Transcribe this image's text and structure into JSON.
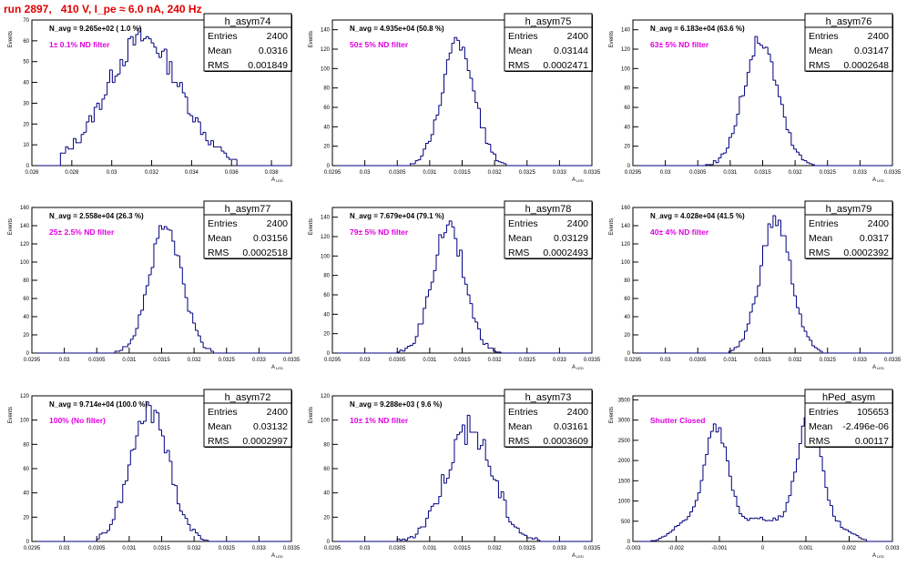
{
  "header": {
    "run_title": "run 2897,   410 V, I_pe ≈ 6.0 nA, 240 Hz"
  },
  "colors": {
    "histogram": "#00007f",
    "filter_label": "#e000e0",
    "run_title": "#e00000"
  },
  "stats_labels": {
    "entries": "Entries",
    "mean": "Mean",
    "rms": "RMS"
  },
  "axis_labels": {
    "y": "Events",
    "x_main": "A",
    "x_sub": "LED"
  },
  "chart_data": [
    {
      "type": "histogram",
      "name": "h_asym74",
      "navg": "N_avg = 9.265e+02 ( 1.0 %)",
      "filter": "1± 0.1% ND filter",
      "entries": "2400",
      "mean": "0.0316",
      "rms": "0.001849",
      "xlim": [
        0.026,
        0.039
      ],
      "ylim": [
        0,
        70
      ],
      "xticks": [
        0.026,
        0.028,
        0.03,
        0.032,
        0.034,
        0.036,
        0.038
      ],
      "xtick_labels": [
        "0.026",
        "0.028",
        "0.03",
        "0.032",
        "0.034",
        "0.036",
        "0.038"
      ],
      "yticks": [
        0,
        10,
        20,
        30,
        40,
        50,
        60,
        70
      ],
      "ytick_labels": [
        "0",
        "10",
        "20",
        "30",
        "40",
        "50",
        "60",
        "70"
      ],
      "dist": {
        "kind": "gauss",
        "mu": 0.0316,
        "sigma": 0.00185,
        "peak": 61,
        "lo": 0.0274,
        "hi": 0.0363,
        "noise": 6
      }
    },
    {
      "type": "histogram",
      "name": "h_asym75",
      "navg": "N_avg = 4.935e+04 (50.8 %)",
      "filter": "50± 5% ND filter",
      "entries": "2400",
      "mean": "0.03144",
      "rms": "0.0002471",
      "xlim": [
        0.0295,
        0.0335
      ],
      "ylim": [
        0,
        150
      ],
      "xticks": [
        0.0295,
        0.03,
        0.0305,
        0.031,
        0.0315,
        0.032,
        0.0325,
        0.033,
        0.0335
      ],
      "xtick_labels": [
        "0.0295",
        "0.03",
        "0.0305",
        "0.031",
        "0.0315",
        "0.032",
        "0.0325",
        "0.033",
        "0.0335"
      ],
      "yticks": [
        0,
        20,
        40,
        60,
        80,
        100,
        120,
        140
      ],
      "ytick_labels": [
        "0",
        "20",
        "40",
        "60",
        "80",
        "100",
        "120",
        "140"
      ],
      "dist": {
        "kind": "gauss",
        "mu": 0.03144,
        "sigma": 0.000247,
        "peak": 128,
        "lo": 0.0307,
        "hi": 0.0322,
        "noise": 10
      }
    },
    {
      "type": "histogram",
      "name": "h_asym76",
      "navg": "N_avg = 6.183e+04 (63.6 %)",
      "filter": "63± 5% ND filter",
      "entries": "2400",
      "mean": "0.03147",
      "rms": "0.0002648",
      "xlim": [
        0.0295,
        0.0335
      ],
      "ylim": [
        0,
        150
      ],
      "xticks": [
        0.0295,
        0.03,
        0.0305,
        0.031,
        0.0315,
        0.032,
        0.0325,
        0.033,
        0.0335
      ],
      "xtick_labels": [
        "0.0295",
        "0.03",
        "0.0305",
        "0.031",
        "0.0315",
        "0.032",
        "0.0325",
        "0.033",
        "0.0335"
      ],
      "yticks": [
        0,
        20,
        40,
        60,
        80,
        100,
        120,
        140
      ],
      "ytick_labels": [
        "0",
        "20",
        "40",
        "60",
        "80",
        "100",
        "120",
        "140"
      ],
      "dist": {
        "kind": "gauss",
        "mu": 0.03147,
        "sigma": 0.000265,
        "peak": 128,
        "lo": 0.0306,
        "hi": 0.0323,
        "noise": 10
      }
    },
    {
      "type": "histogram",
      "name": "h_asym77",
      "navg": "N_avg = 2.558e+04 (26.3 %)",
      "filter": "25± 2.5% ND filter",
      "entries": "2400",
      "mean": "0.03156",
      "rms": "0.0002518",
      "xlim": [
        0.0295,
        0.0335
      ],
      "ylim": [
        0,
        160
      ],
      "xticks": [
        0.0295,
        0.03,
        0.0305,
        0.031,
        0.0315,
        0.032,
        0.0325,
        0.033,
        0.0335
      ],
      "xtick_labels": [
        "0.0295",
        "0.03",
        "0.0305",
        "0.031",
        "0.0315",
        "0.032",
        "0.0325",
        "0.033",
        "0.0335"
      ],
      "yticks": [
        0,
        20,
        40,
        60,
        80,
        100,
        120,
        140,
        160
      ],
      "ytick_labels": [
        "0",
        "20",
        "40",
        "60",
        "80",
        "100",
        "120",
        "140",
        "160"
      ],
      "dist": {
        "kind": "gauss",
        "mu": 0.03156,
        "sigma": 0.000252,
        "peak": 140,
        "lo": 0.0308,
        "hi": 0.0323,
        "noise": 10
      }
    },
    {
      "type": "histogram",
      "name": "h_asym78",
      "navg": "N_avg = 7.679e+04 (79.1 %)",
      "filter": "79± 5% ND filter",
      "entries": "2400",
      "mean": "0.03129",
      "rms": "0.0002493",
      "xlim": [
        0.0295,
        0.0335
      ],
      "ylim": [
        0,
        150
      ],
      "xticks": [
        0.0295,
        0.03,
        0.0305,
        0.031,
        0.0315,
        0.032,
        0.0325,
        0.033,
        0.0335
      ],
      "xtick_labels": [
        "0.0295",
        "0.03",
        "0.0305",
        "0.031",
        "0.0315",
        "0.032",
        "0.0325",
        "0.033",
        "0.0335"
      ],
      "yticks": [
        0,
        20,
        40,
        60,
        80,
        100,
        120,
        140
      ],
      "ytick_labels": [
        "0",
        "20",
        "40",
        "60",
        "80",
        "100",
        "120",
        "140"
      ],
      "dist": {
        "kind": "gauss",
        "mu": 0.03129,
        "sigma": 0.000249,
        "peak": 130,
        "lo": 0.0305,
        "hi": 0.0321,
        "noise": 10
      }
    },
    {
      "type": "histogram",
      "name": "h_asym79",
      "navg": "N_avg = 4.028e+04 (41.5 %)",
      "filter": "40± 4% ND filter",
      "entries": "2400",
      "mean": "0.0317",
      "rms": "0.0002392",
      "xlim": [
        0.0295,
        0.0335
      ],
      "ylim": [
        0,
        160
      ],
      "xticks": [
        0.0295,
        0.03,
        0.0305,
        0.031,
        0.0315,
        0.032,
        0.0325,
        0.033,
        0.0335
      ],
      "xtick_labels": [
        "0.0295",
        "0.03",
        "0.0305",
        "0.031",
        "0.0315",
        "0.032",
        "0.0325",
        "0.033",
        "0.0335"
      ],
      "yticks": [
        0,
        20,
        40,
        60,
        80,
        100,
        120,
        140,
        160
      ],
      "ytick_labels": [
        "0",
        "20",
        "40",
        "60",
        "80",
        "100",
        "120",
        "140",
        "160"
      ],
      "dist": {
        "kind": "gauss",
        "mu": 0.0317,
        "sigma": 0.000239,
        "peak": 145,
        "lo": 0.031,
        "hi": 0.0324,
        "noise": 10
      }
    },
    {
      "type": "histogram",
      "name": "h_asym72",
      "navg": "N_avg = 9.714e+04 (100.0 %)",
      "filter": "100% (No filter)",
      "entries": "2400",
      "mean": "0.03132",
      "rms": "0.0002997",
      "xlim": [
        0.0295,
        0.0335
      ],
      "ylim": [
        0,
        120
      ],
      "xticks": [
        0.0295,
        0.03,
        0.0305,
        0.031,
        0.0315,
        0.032,
        0.0325,
        0.033,
        0.0335
      ],
      "xtick_labels": [
        "0.0295",
        "0.03",
        "0.0305",
        "0.031",
        "0.0315",
        "0.032",
        "0.0325",
        "0.033",
        "0.0335"
      ],
      "yticks": [
        0,
        20,
        40,
        60,
        80,
        100,
        120
      ],
      "ytick_labels": [
        "0",
        "20",
        "40",
        "60",
        "80",
        "100",
        "120"
      ],
      "dist": {
        "kind": "gauss",
        "mu": 0.03132,
        "sigma": 0.0003,
        "peak": 108,
        "lo": 0.0305,
        "hi": 0.0322,
        "noise": 10
      }
    },
    {
      "type": "histogram",
      "name": "h_asym73",
      "navg": "N_avg = 9.288e+03 ( 9.6 %)",
      "filter": "10± 1% ND filter",
      "entries": "2400",
      "mean": "0.03161",
      "rms": "0.0003609",
      "xlim": [
        0.0295,
        0.0335
      ],
      "ylim": [
        0,
        120
      ],
      "xticks": [
        0.0295,
        0.03,
        0.0305,
        0.031,
        0.0315,
        0.032,
        0.0325,
        0.033,
        0.0335
      ],
      "xtick_labels": [
        "0.0295",
        "0.03",
        "0.0305",
        "0.031",
        "0.0315",
        "0.032",
        "0.0325",
        "0.033",
        "0.0335"
      ],
      "yticks": [
        0,
        20,
        40,
        60,
        80,
        100,
        120
      ],
      "ytick_labels": [
        "0",
        "20",
        "40",
        "60",
        "80",
        "100",
        "120"
      ],
      "dist": {
        "kind": "gauss",
        "mu": 0.03161,
        "sigma": 0.00036,
        "peak": 92,
        "lo": 0.0305,
        "hi": 0.0327,
        "noise": 12
      }
    },
    {
      "type": "histogram",
      "name": "hPed_asym",
      "navg": "",
      "filter": "Shutter Closed",
      "entries": "105653",
      "mean": "-2.496e-06",
      "rms": "0.00117",
      "xlim": [
        -0.003,
        0.003
      ],
      "ylim": [
        0,
        3600
      ],
      "xticks": [
        -0.003,
        -0.002,
        -0.001,
        0,
        0.001,
        0.002,
        0.003
      ],
      "xtick_labels": [
        "-0.003",
        "-0.002",
        "-0.001",
        "0",
        "0.001",
        "0.002",
        "0.003"
      ],
      "yticks": [
        0,
        500,
        1000,
        1500,
        2000,
        2500,
        3000,
        3500
      ],
      "ytick_labels": [
        "0",
        "500",
        "1000",
        "1500",
        "2000",
        "2500",
        "3000",
        "3500"
      ],
      "dist": {
        "kind": "bimodal",
        "lo": -0.0026,
        "hi": 0.0024
      }
    }
  ]
}
